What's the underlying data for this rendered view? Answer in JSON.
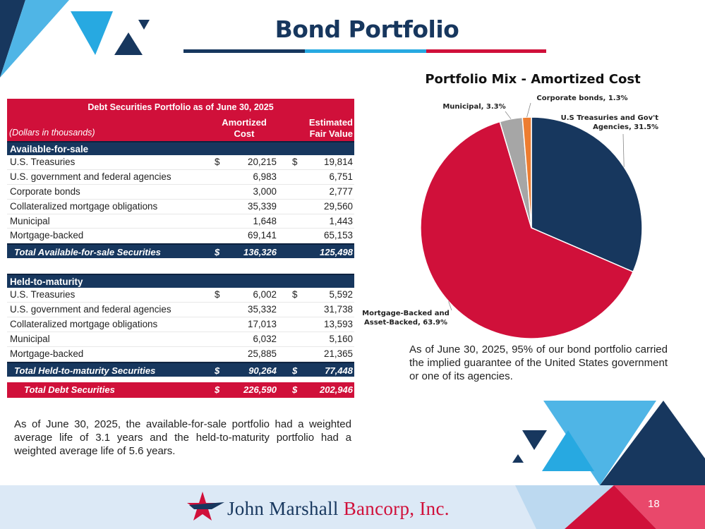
{
  "header": {
    "title": "Bond Portfolio",
    "rule_colors": [
      "#17375e",
      "#27a9e1",
      "#d0103a"
    ]
  },
  "table": {
    "title": "Debt Securities Portfolio as of June 30, 2025",
    "units_note": "(Dollars in thousands)",
    "col1_header_line1": "Amortized",
    "col1_header_line2": "Cost",
    "col2_header_line1": "Estimated",
    "col2_header_line2": "Fair Value",
    "afs": {
      "section_label": "Available-for-sale",
      "rows": [
        {
          "label": "U.S. Treasuries",
          "d1": "$",
          "cost": "20,215",
          "d2": "$",
          "fair": "19,814"
        },
        {
          "label": "U.S. government and federal agencies",
          "d1": "",
          "cost": "6,983",
          "d2": "",
          "fair": "6,751"
        },
        {
          "label": "Corporate bonds",
          "d1": "",
          "cost": "3,000",
          "d2": "",
          "fair": "2,777"
        },
        {
          "label": "Collateralized mortgage obligations",
          "d1": "",
          "cost": "35,339",
          "d2": "",
          "fair": "29,560"
        },
        {
          "label": "Municipal",
          "d1": "",
          "cost": "1,648",
          "d2": "",
          "fair": "1,443"
        },
        {
          "label": "Mortgage-backed",
          "d1": "",
          "cost": "69,141",
          "d2": "",
          "fair": "65,153"
        }
      ],
      "total": {
        "label": "Total Available-for-sale Securities",
        "d1": "$",
        "cost": "136,326",
        "d2": "",
        "fair": "125,498"
      }
    },
    "htm": {
      "section_label": "Held-to-maturity",
      "rows": [
        {
          "label": "U.S. Treasuries",
          "d1": "$",
          "cost": "6,002",
          "d2": "$",
          "fair": "5,592"
        },
        {
          "label": "U.S. government and federal agencies",
          "d1": "",
          "cost": "35,332",
          "d2": "",
          "fair": "31,738"
        },
        {
          "label": "Collateralized mortgage obligations",
          "d1": "",
          "cost": "17,013",
          "d2": "",
          "fair": "13,593"
        },
        {
          "label": "Municipal",
          "d1": "",
          "cost": "6,032",
          "d2": "",
          "fair": "5,160"
        },
        {
          "label": "Mortgage-backed",
          "d1": "",
          "cost": "25,885",
          "d2": "",
          "fair": "21,365"
        }
      ],
      "total": {
        "label": "Total Held-to-maturity Securities",
        "d1": "$",
        "cost": "90,264",
        "d2": "$",
        "fair": "77,448"
      }
    },
    "grand_total": {
      "label": "Total Debt Securities",
      "d1": "$",
      "cost": "226,590",
      "d2": "$",
      "fair": "202,946"
    }
  },
  "left_note": "As of June 30, 2025, the available-for-sale portfolio had a weighted average life of 3.1 years and the held-to-maturity portfolio had a weighted average life of 5.6 years.",
  "right_note": "As of June 30, 2025, 95% of our bond portfolio carried the implied guarantee of the United States government or one of its agencies.",
  "chart_data": {
    "type": "pie",
    "title": "Portfolio Mix - Amortized Cost",
    "slices": [
      {
        "label_line1": "U.S Treasuries and Gov't",
        "label_line2": "Agencies, 31.5%",
        "value": 31.5,
        "color": "#17375e"
      },
      {
        "label_line1": "Mortgage-Backed and",
        "label_line2": "Asset-Backed, 63.9%",
        "value": 63.9,
        "color": "#d0103a"
      },
      {
        "label_line1": "Municipal, 3.3%",
        "label_line2": "",
        "value": 3.3,
        "color": "#a6a6a6"
      },
      {
        "label_line1": "Corporate bonds, 1.3%",
        "label_line2": "",
        "value": 1.3,
        "color": "#ed7d31"
      }
    ]
  },
  "footer": {
    "logo_name_part1": "John Marshall ",
    "logo_name_part2": "Bancorp, Inc.",
    "page_number": "18",
    "background_color": "#dce9f6"
  }
}
